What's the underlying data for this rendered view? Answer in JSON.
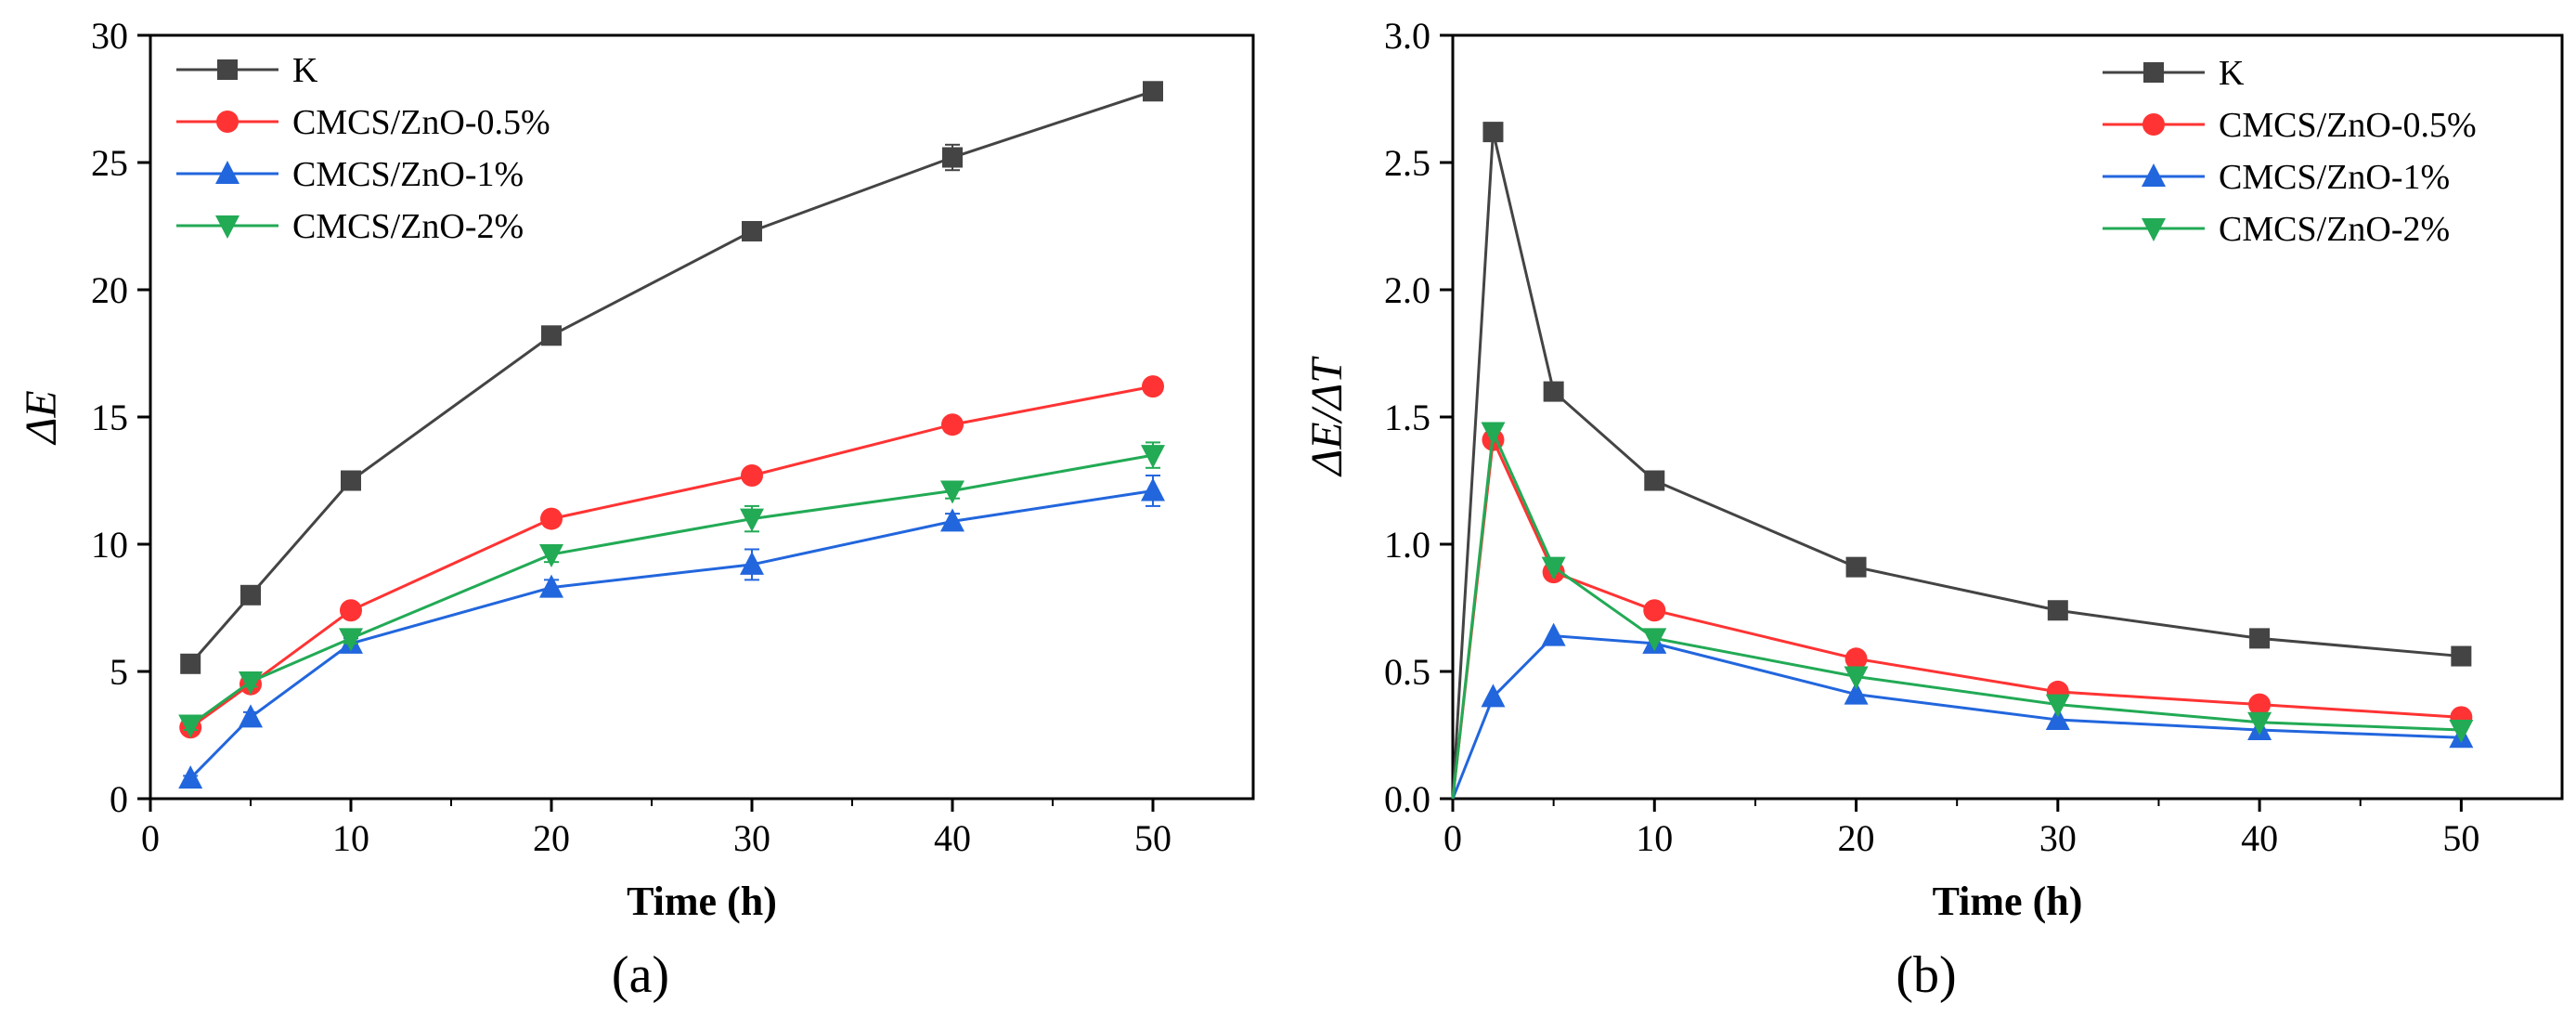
{
  "chart_data": [
    {
      "type": "line",
      "panel": "(a)",
      "xlabel": "Time (h)",
      "ylabel": "ΔE",
      "xlim": [
        0,
        55
      ],
      "ylim": [
        0,
        30
      ],
      "xticks": [
        0,
        10,
        20,
        30,
        40,
        50
      ],
      "yticks": [
        0,
        5,
        10,
        15,
        20,
        25,
        30
      ],
      "legend_position": "top-left",
      "x": [
        2,
        5,
        10,
        20,
        30,
        40,
        50
      ],
      "series": [
        {
          "name": "K",
          "color": "#444444",
          "marker": "square",
          "values": [
            5.3,
            8.0,
            12.5,
            18.2,
            22.3,
            25.2,
            27.8
          ],
          "errors": [
            0.2,
            0.2,
            0.2,
            0.2,
            0.3,
            0.5,
            0.2
          ]
        },
        {
          "name": "CMCS/ZnO-0.5%",
          "color": "#ff3333",
          "marker": "circle",
          "values": [
            2.8,
            4.5,
            7.4,
            11.0,
            12.7,
            14.7,
            16.2
          ],
          "errors": [
            0.2,
            0.2,
            0.2,
            0.3,
            0.2,
            0.2,
            0.2
          ]
        },
        {
          "name": "CMCS/ZnO-1%",
          "color": "#2266dd",
          "marker": "triangle-up",
          "values": [
            0.8,
            3.2,
            6.1,
            8.3,
            9.2,
            10.9,
            12.1
          ],
          "errors": [
            0.1,
            0.2,
            0.2,
            0.3,
            0.6,
            0.3,
            0.6
          ]
        },
        {
          "name": "CMCS/ZnO-2%",
          "color": "#22aa55",
          "marker": "triangle-down",
          "values": [
            2.9,
            4.6,
            6.3,
            9.6,
            11.0,
            12.1,
            13.5
          ],
          "errors": [
            0.2,
            0.2,
            0.2,
            0.3,
            0.5,
            0.3,
            0.5
          ]
        }
      ]
    },
    {
      "type": "line",
      "panel": "(b)",
      "xlabel": "Time (h)",
      "ylabel": "ΔE/ΔT",
      "xlim": [
        0,
        55
      ],
      "ylim": [
        0,
        3.0
      ],
      "xticks": [
        0,
        10,
        20,
        30,
        40,
        50
      ],
      "yticks": [
        "0.0",
        "0.5",
        "1.0",
        "1.5",
        "2.0",
        "2.5",
        "3.0"
      ],
      "legend_position": "top-right",
      "x": [
        0,
        2,
        5,
        10,
        20,
        30,
        40,
        50
      ],
      "series": [
        {
          "name": "K",
          "color": "#444444",
          "marker": "square",
          "values": [
            0,
            2.62,
            1.6,
            1.25,
            0.91,
            0.74,
            0.63,
            0.56
          ]
        },
        {
          "name": "CMCS/ZnO-0.5%",
          "color": "#ff3333",
          "marker": "circle",
          "values": [
            0,
            1.41,
            0.89,
            0.74,
            0.55,
            0.42,
            0.37,
            0.32
          ]
        },
        {
          "name": "CMCS/ZnO-1%",
          "color": "#2266dd",
          "marker": "triangle-up",
          "values": [
            0,
            0.4,
            0.64,
            0.61,
            0.41,
            0.31,
            0.27,
            0.24
          ]
        },
        {
          "name": "CMCS/ZnO-2%",
          "color": "#22aa55",
          "marker": "triangle-down",
          "values": [
            0,
            1.44,
            0.91,
            0.63,
            0.48,
            0.37,
            0.3,
            0.27
          ]
        }
      ]
    }
  ]
}
